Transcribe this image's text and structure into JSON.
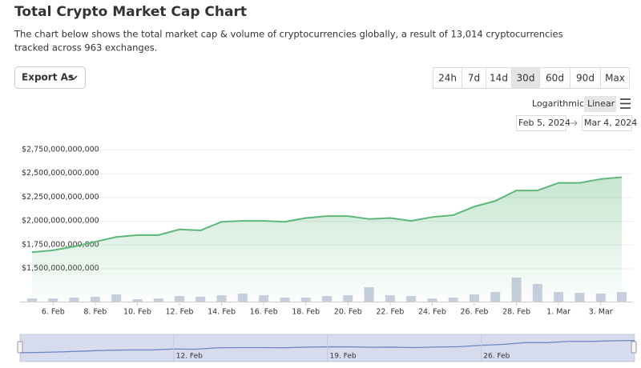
{
  "chart_data": {
    "type": "area",
    "title": "Total Crypto Market Cap Chart",
    "subtitle": "The chart below shows the total market cap & volume of cryptocurrencies globally, a result of 13,014 cryptocurrencies tracked across 963 exchanges.",
    "categories": [
      null,
      "6. Feb",
      null,
      "8. Feb",
      null,
      "10. Feb",
      null,
      "12. Feb",
      null,
      "14. Feb",
      null,
      "16. Feb",
      null,
      "18. Feb",
      null,
      "20. Feb",
      null,
      "22. Feb",
      null,
      "24. Feb",
      null,
      "26. Feb",
      null,
      "28. Feb",
      null,
      "1. Mar",
      null,
      "3. Mar",
      null
    ],
    "series": [
      {
        "name": "Market Cap",
        "color": "#5cb87a",
        "values": [
          1670000000000,
          1690000000000,
          1730000000000,
          1780000000000,
          1830000000000,
          1850000000000,
          1850000000000,
          1910000000000,
          1900000000000,
          1990000000000,
          2000000000000,
          2000000000000,
          1990000000000,
          2030000000000,
          2050000000000,
          2050000000000,
          2020000000000,
          2030000000000,
          2000000000000,
          2040000000000,
          2060000000000,
          2150000000000,
          2210000000000,
          2320000000000,
          2320000000000,
          2400000000000,
          2400000000000,
          2440000000000,
          2460000000000
        ]
      },
      {
        "name": "Volume",
        "color": "#c9cfe0",
        "axis": "y2",
        "values": [
          31000000000,
          31000000000,
          39000000000,
          47000000000,
          70000000000,
          23000000000,
          31000000000,
          55000000000,
          47000000000,
          62000000000,
          78000000000,
          62000000000,
          39000000000,
          39000000000,
          55000000000,
          62000000000,
          140000000000,
          62000000000,
          55000000000,
          31000000000,
          39000000000,
          70000000000,
          94000000000,
          234000000000,
          172000000000,
          94000000000,
          86000000000,
          78000000000,
          94000000000
        ]
      }
    ],
    "ylim": [
      1150000000000,
      2750000000000
    ],
    "yticks": [
      {
        "value": 1500000000000,
        "label": "$1,500,000,000,000"
      },
      {
        "value": 1750000000000,
        "label": "$1,750,000,000,000"
      },
      {
        "value": 2000000000000,
        "label": "$2,000,000,000,000"
      },
      {
        "value": 2250000000000,
        "label": "$2,250,000,000,000"
      },
      {
        "value": 2500000000000,
        "label": "$2,500,000,000,000"
      },
      {
        "value": 2750000000000,
        "label": "$2,750,000,000,000"
      }
    ],
    "y2lim": [
      0,
      250000000000
    ],
    "grid": true
  },
  "controls": {
    "export": "Export As",
    "ranges": [
      "24h",
      "7d",
      "14d",
      "30d",
      "60d",
      "90d",
      "Max"
    ],
    "active_range": "30d",
    "scales": [
      "Logarithmic",
      "Linear"
    ],
    "active_scale": "Linear",
    "date_from": "Feb 5, 2024",
    "date_to": "Mar 4, 2024"
  },
  "navigator": {
    "labels": [
      "12. Feb",
      "19. Feb",
      "26. Feb"
    ]
  }
}
